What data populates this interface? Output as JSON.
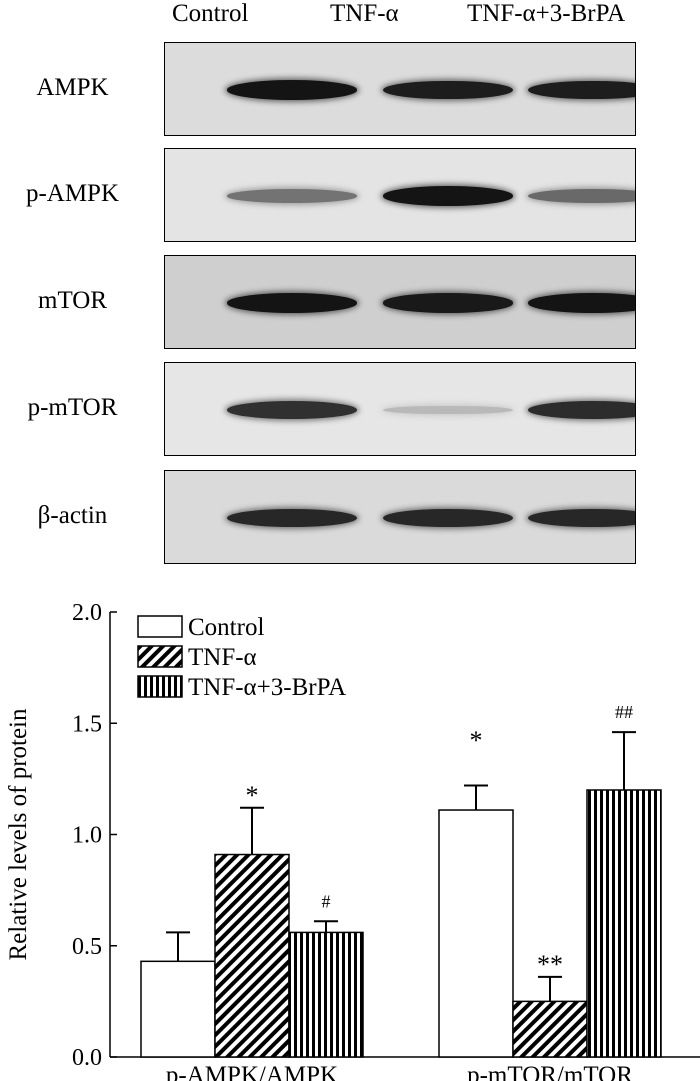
{
  "blot": {
    "lanes": [
      "Control",
      "TNF-α",
      "TNF-α+3-BrPA"
    ],
    "proteins": [
      {
        "name": "AMPK",
        "bg": "#dcdcdc",
        "bands": [
          0.95,
          0.9,
          0.9
        ]
      },
      {
        "name": "p-AMPK",
        "bg": "#e4e4e4",
        "bands": [
          0.45,
          0.95,
          0.5
        ]
      },
      {
        "name": "mTOR",
        "bg": "#cfcfcf",
        "bands": [
          0.95,
          0.92,
          0.95
        ]
      },
      {
        "name": "p-mTOR",
        "bg": "#e6e6e6",
        "bands": [
          0.8,
          0.08,
          0.82
        ]
      },
      {
        "name": "β-actin",
        "bg": "#dadada",
        "bands": [
          0.85,
          0.85,
          0.85
        ]
      }
    ]
  },
  "chart_data": {
    "type": "bar",
    "categories": [
      "p-AMPK/AMPK",
      "p-mTOR/mTOR"
    ],
    "ylabel": "Relative levels of protein",
    "ylim": [
      0,
      2.0
    ],
    "yticks": [
      "0.0",
      "0.5",
      "1.0",
      "1.5",
      "2.0"
    ],
    "legend_position": "top-left",
    "series": [
      {
        "name": "Control",
        "pattern": "open",
        "values": [
          0.43,
          1.11
        ],
        "errors": [
          0.13,
          0.11
        ],
        "marks": [
          "",
          "*"
        ]
      },
      {
        "name": "TNF-α",
        "pattern": "diagonal",
        "values": [
          0.91,
          0.25
        ],
        "errors": [
          0.21,
          0.11
        ],
        "marks": [
          "*",
          "**"
        ]
      },
      {
        "name": "TNF-α+3-BrPA",
        "pattern": "vertical",
        "values": [
          0.56,
          1.2
        ],
        "errors": [
          0.05,
          0.26
        ],
        "marks": [
          "#",
          "##"
        ]
      }
    ]
  }
}
